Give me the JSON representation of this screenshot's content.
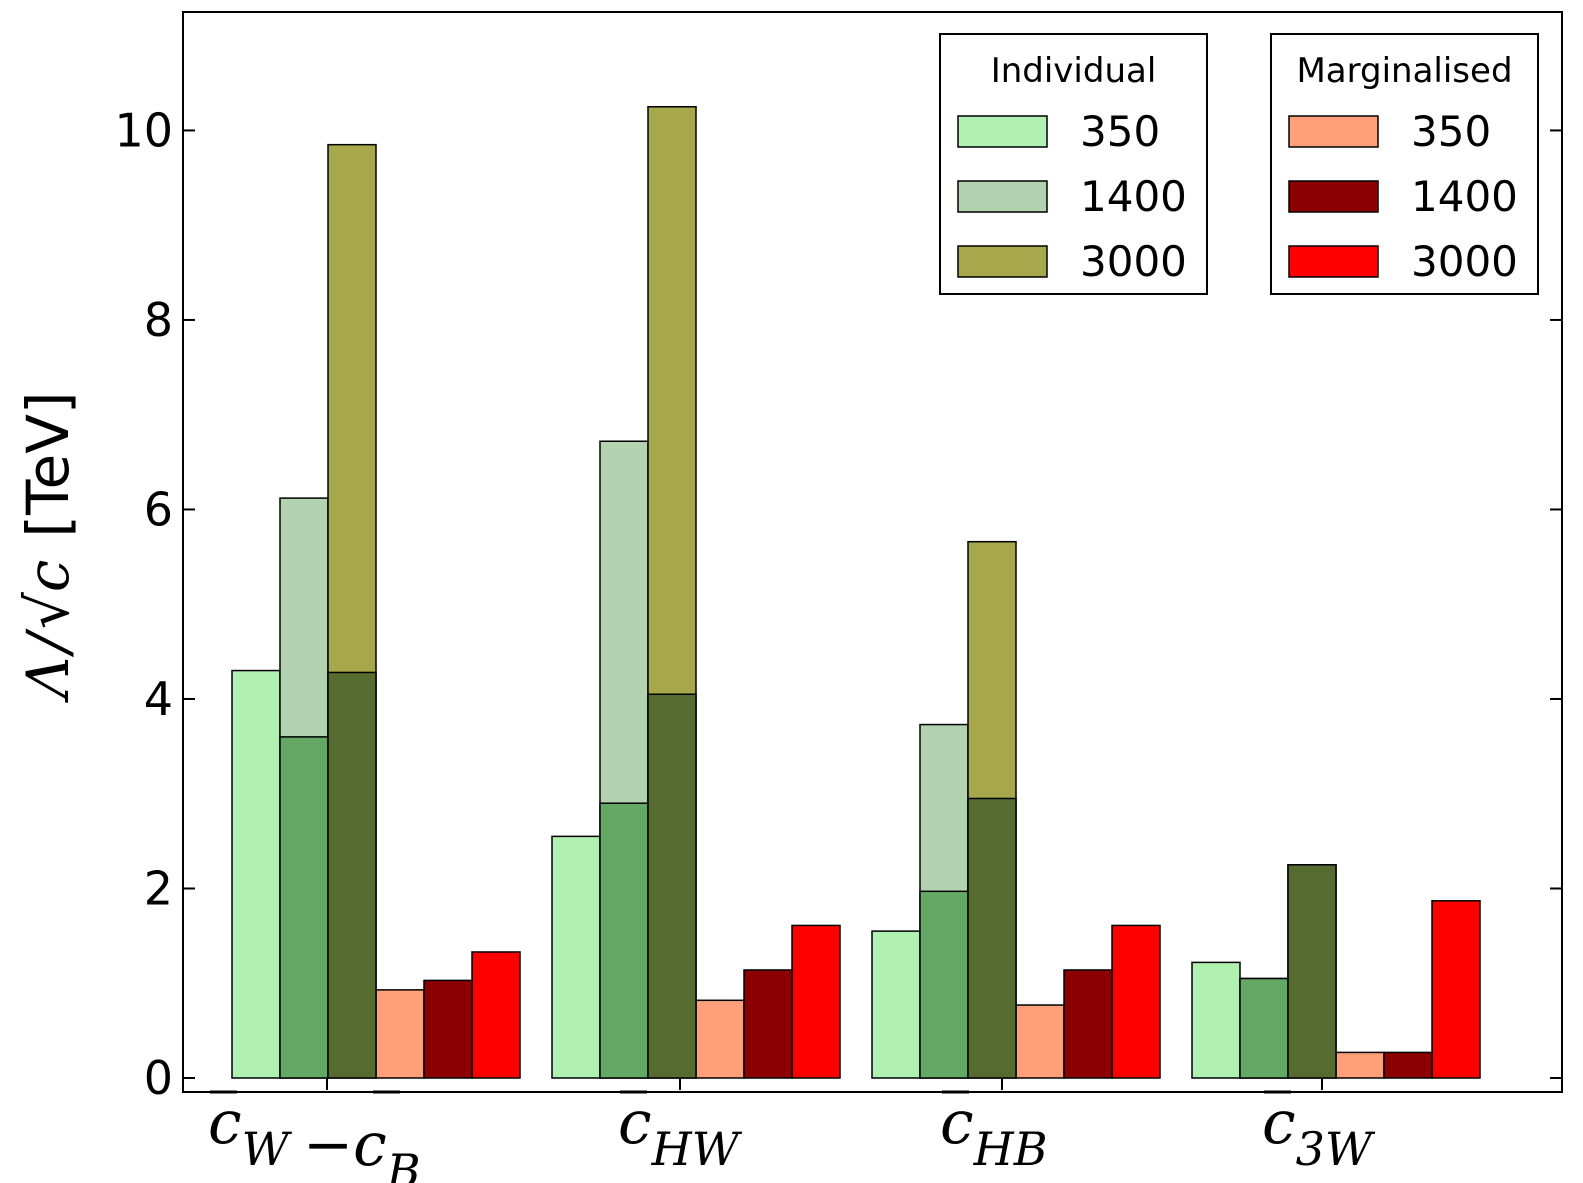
{
  "chart_data": {
    "type": "bar",
    "title": "",
    "xlabel": "",
    "ylabel": "Λ/√c [TeV]",
    "ylabel_parts": {
      "symbol": "Λ",
      "slash": "/",
      "radical": "√",
      "var": "c",
      "unit": "[TeV]"
    },
    "ylim": [
      0,
      11.25
    ],
    "yticks": [
      0,
      2,
      4,
      6,
      8,
      10
    ],
    "grid": false,
    "categories": [
      {
        "label": "c̄W −c̄B",
        "parts": [
          {
            "base": "c",
            "sub": "W"
          },
          {
            "sep": "−"
          },
          {
            "base": "c",
            "sub": "B"
          }
        ]
      },
      {
        "label": "c̄HW",
        "parts": [
          {
            "base": "c",
            "sub": "HW"
          }
        ]
      },
      {
        "label": "c̄HB",
        "parts": [
          {
            "base": "c",
            "sub": "HB"
          }
        ]
      },
      {
        "label": "c̄3W",
        "parts": [
          {
            "base": "c",
            "sub": "3W"
          }
        ]
      }
    ],
    "series": [
      {
        "name": "350",
        "group": "Individual",
        "color": "#b0f0b0",
        "values": [
          4.3,
          2.55,
          1.55,
          1.22
        ]
      },
      {
        "name": "1400",
        "group": "Individual",
        "color": "#b2d2b0",
        "values": [
          6.12,
          6.72,
          3.73,
          1.05
        ]
      },
      {
        "name": "3000",
        "group": "Individual",
        "color": "#a7a74b",
        "values": [
          9.85,
          10.25,
          5.66,
          2.25
        ]
      },
      {
        "name": "350",
        "group": "Marginalised",
        "color": "#ffa07a",
        "values": [
          0.93,
          0.82,
          0.77,
          0.27
        ]
      },
      {
        "name": "1400",
        "group": "Marginalised",
        "color": "#8b0000",
        "values": [
          1.03,
          1.14,
          1.14,
          0.27
        ]
      },
      {
        "name": "3000",
        "group": "Marginalised",
        "color": "#ff0000",
        "values": [
          1.33,
          1.61,
          1.61,
          1.87
        ]
      }
    ],
    "overlays": [
      {
        "name": "1400 marginal-overlap",
        "over_series": 1,
        "color": "#64a866",
        "values": [
          3.6,
          2.9,
          1.97,
          1.05
        ]
      },
      {
        "name": "3000 marginal-overlap",
        "over_series": 2,
        "color": "#556b2f",
        "values": [
          4.28,
          4.05,
          2.95,
          2.25
        ]
      }
    ],
    "legends": [
      {
        "title": "Individual",
        "placement": "top-right",
        "entries": [
          {
            "label": "350",
            "series": 0
          },
          {
            "label": "1400",
            "series": 1
          },
          {
            "label": "3000",
            "series": 2
          }
        ]
      },
      {
        "title": "Marginalised",
        "placement": "top-right",
        "entries": [
          {
            "label": "350",
            "series": 3
          },
          {
            "label": "1400",
            "series": 4
          },
          {
            "label": "3000",
            "series": 5
          }
        ]
      }
    ]
  }
}
